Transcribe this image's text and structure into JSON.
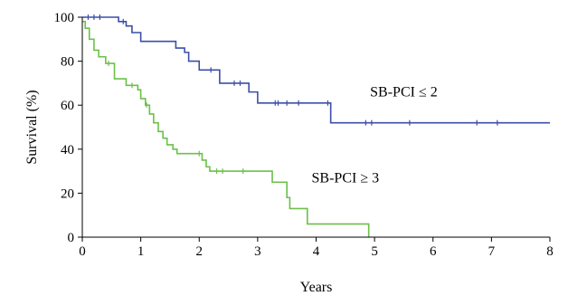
{
  "chart_data": {
    "type": "line",
    "xlabel": "Years",
    "ylabel": "Survival (%)",
    "xlim": [
      0,
      8
    ],
    "ylim": [
      0,
      100
    ],
    "xticks": [
      0,
      1,
      2,
      3,
      4,
      5,
      6,
      7,
      8
    ],
    "yticks": [
      0,
      20,
      40,
      60,
      80,
      100
    ],
    "grid": false,
    "step": true,
    "series": [
      {
        "name": "SB-PCI ≤ 2",
        "color": "#3c4ea8",
        "x": [
          0,
          0.55,
          0.62,
          0.75,
          0.85,
          1.0,
          1.5,
          1.6,
          1.75,
          1.82,
          2.0,
          2.1,
          2.35,
          2.75,
          2.85,
          3.0,
          4.25,
          8.0
        ],
        "y": [
          100,
          100,
          98,
          96,
          93,
          89,
          89,
          86,
          84,
          80,
          76,
          76,
          70,
          70,
          66,
          61,
          52,
          52
        ],
        "censored": [
          {
            "x": 0.1,
            "y": 100
          },
          {
            "x": 0.2,
            "y": 100
          },
          {
            "x": 0.3,
            "y": 100
          },
          {
            "x": 0.7,
            "y": 98
          },
          {
            "x": 2.2,
            "y": 76
          },
          {
            "x": 2.6,
            "y": 70
          },
          {
            "x": 2.7,
            "y": 70
          },
          {
            "x": 3.3,
            "y": 61
          },
          {
            "x": 3.35,
            "y": 61
          },
          {
            "x": 3.5,
            "y": 61
          },
          {
            "x": 3.7,
            "y": 61
          },
          {
            "x": 4.2,
            "y": 61
          },
          {
            "x": 4.85,
            "y": 52
          },
          {
            "x": 4.95,
            "y": 52
          },
          {
            "x": 5.6,
            "y": 52
          },
          {
            "x": 6.75,
            "y": 52
          },
          {
            "x": 7.1,
            "y": 52
          }
        ]
      },
      {
        "name": "SB-PCI ≥ 3",
        "color": "#6cc04a",
        "x": [
          0,
          0.05,
          0.12,
          0.2,
          0.28,
          0.4,
          0.55,
          0.75,
          0.95,
          1.0,
          1.08,
          1.15,
          1.22,
          1.3,
          1.38,
          1.45,
          1.55,
          1.62,
          2.05,
          2.12,
          2.18,
          3.25,
          3.5,
          3.55,
          3.85,
          4.9
        ],
        "y": [
          98,
          95,
          90,
          85,
          82,
          79,
          72,
          69,
          67,
          63,
          60,
          56,
          52,
          48,
          45,
          42,
          40,
          38,
          35,
          32,
          30,
          25,
          18,
          13,
          6,
          0
        ],
        "censored": [
          {
            "x": 0.45,
            "y": 79
          },
          {
            "x": 0.85,
            "y": 69
          },
          {
            "x": 1.1,
            "y": 60
          },
          {
            "x": 2.0,
            "y": 38
          },
          {
            "x": 2.3,
            "y": 30
          },
          {
            "x": 2.4,
            "y": 30
          },
          {
            "x": 2.75,
            "y": 30
          }
        ]
      }
    ],
    "annotations": [
      {
        "text": "SB-PCI ≤ 2",
        "x": 5.5,
        "y": 66
      },
      {
        "text": "SB-PCI ≥ 3",
        "x": 4.5,
        "y": 27
      }
    ]
  }
}
